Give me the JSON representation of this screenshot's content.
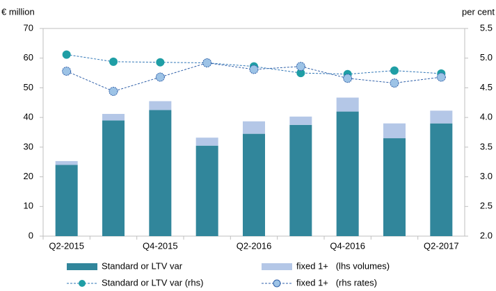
{
  "chart_data": {
    "type": "bar",
    "y_label": "€ million",
    "y2_label": "per cent",
    "categories": [
      "Q2-2015",
      null,
      "Q4-2015",
      null,
      "Q2-2016",
      null,
      "Q4-2016",
      null,
      "Q2-2017"
    ],
    "series": [
      {
        "name": "Standard or LTV var",
        "type": "bar",
        "color": "#31869b",
        "values": [
          24,
          39,
          42.5,
          30.5,
          34.5,
          37.5,
          42,
          33,
          38
        ]
      },
      {
        "name": "fixed 1+   (lhs volumes)",
        "type": "bar",
        "color": "#b4c7e7",
        "values": [
          1.3,
          2.2,
          3,
          2.7,
          4.2,
          2.8,
          4.7,
          5,
          4.3
        ]
      },
      {
        "name": "Standard or LTV var (rhs)",
        "type": "line",
        "axis": "y2",
        "color": "#1f9ea5",
        "line_color": "#2e75b6",
        "values": [
          5.06,
          4.94,
          4.93,
          4.92,
          4.86,
          4.75,
          4.73,
          4.79,
          4.74
        ]
      },
      {
        "name": "fixed 1+   (rhs rates)",
        "type": "line",
        "axis": "y2",
        "color": "#9dc3e6",
        "line_color": "#2e5fa8",
        "values": [
          4.78,
          4.44,
          4.68,
          4.92,
          4.81,
          4.86,
          4.66,
          4.58,
          4.68
        ]
      }
    ],
    "ylim": [
      0,
      70
    ],
    "yticks": [
      0,
      10,
      20,
      30,
      40,
      50,
      60,
      70
    ],
    "y2lim": [
      2,
      5.5
    ],
    "y2ticks": [
      {
        "value": 2,
        "label": "2.0"
      },
      2.5,
      {
        "value": 3,
        "label": "3.0"
      },
      3.5,
      {
        "value": 4,
        "label": "4.0"
      },
      4.5,
      {
        "value": 5,
        "label": "5.0"
      },
      5.5
    ],
    "legend": "bottom"
  }
}
